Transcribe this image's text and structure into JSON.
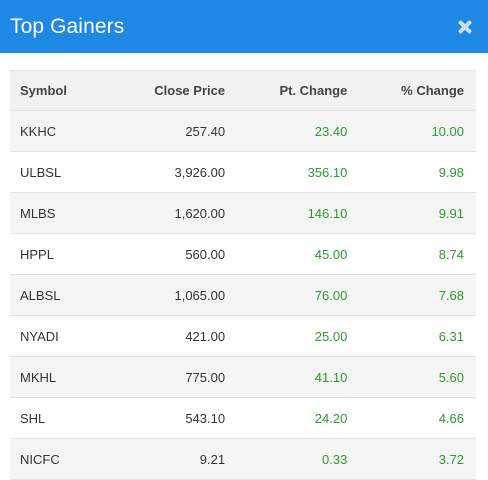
{
  "header": {
    "title": "Top Gainers"
  },
  "columns": [
    "Symbol",
    "Close Price",
    "Pt. Change",
    "% Change"
  ],
  "rows": [
    {
      "symbol": "KKHC",
      "close": "257.40",
      "pt": "23.40",
      "pct": "10.00"
    },
    {
      "symbol": "ULBSL",
      "close": "3,926.00",
      "pt": "356.10",
      "pct": "9.98"
    },
    {
      "symbol": "MLBS",
      "close": "1,620.00",
      "pt": "146.10",
      "pct": "9.91"
    },
    {
      "symbol": "HPPL",
      "close": "560.00",
      "pt": "45.00",
      "pct": "8.74"
    },
    {
      "symbol": "ALBSL",
      "close": "1,065.00",
      "pt": "76.00",
      "pct": "7.68"
    },
    {
      "symbol": "NYADI",
      "close": "421.00",
      "pt": "25.00",
      "pct": "6.31"
    },
    {
      "symbol": "MKHL",
      "close": "775.00",
      "pt": "41.10",
      "pct": "5.60"
    },
    {
      "symbol": "SHL",
      "close": "543.10",
      "pt": "24.20",
      "pct": "4.66"
    },
    {
      "symbol": "NICFC",
      "close": "9.21",
      "pt": "0.33",
      "pct": "3.72"
    }
  ],
  "colors": {
    "header_bg": "#1e88e5",
    "positive": "#2e9a2e"
  },
  "icons": {
    "close": "close-icon"
  }
}
